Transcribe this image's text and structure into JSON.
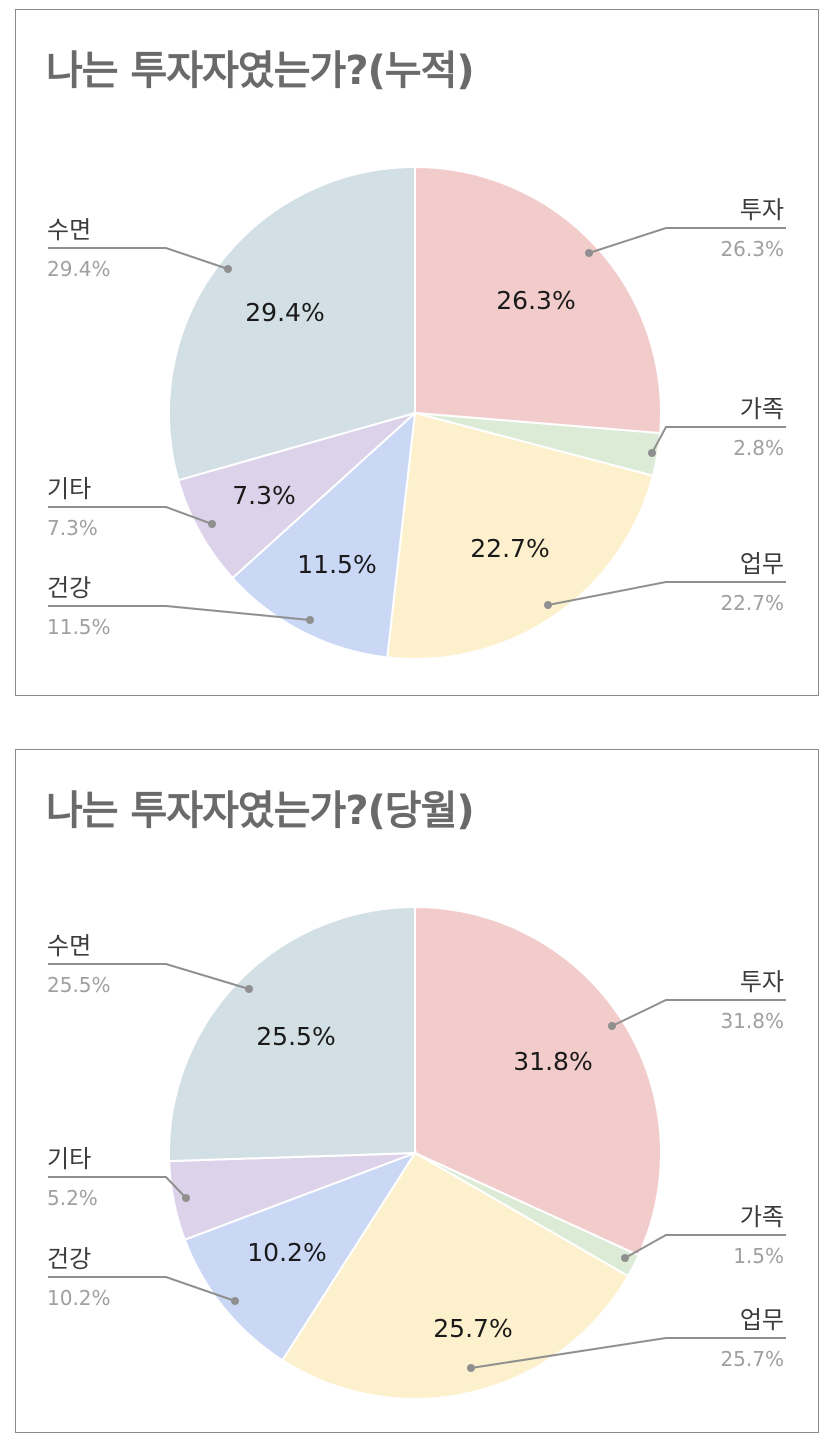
{
  "chart_data": [
    {
      "type": "pie",
      "title": "나는 투자자였는가?(누적)",
      "slices": [
        {
          "label": "투자",
          "value": 26.3,
          "value_label": "26.3%",
          "color": "#f2cbcb"
        },
        {
          "label": "가족",
          "value": 2.8,
          "value_label": "2.8%",
          "color": "#dcebd6"
        },
        {
          "label": "업무",
          "value": 22.7,
          "value_label": "22.7%",
          "color": "#fdf0cc"
        },
        {
          "label": "건강",
          "value": 11.5,
          "value_label": "11.5%",
          "color": "#cad8f5"
        },
        {
          "label": "기타",
          "value": 7.3,
          "value_label": "7.3%",
          "color": "#dcd3ea"
        },
        {
          "label": "수면",
          "value": 29.4,
          "value_label": "29.4%",
          "color": "#d2dfe4"
        }
      ]
    },
    {
      "type": "pie",
      "title": "나는 투자자였는가?(당월)",
      "slices": [
        {
          "label": "투자",
          "value": 31.8,
          "value_label": "31.8%",
          "color": "#f2cbcb"
        },
        {
          "label": "가족",
          "value": 1.5,
          "value_label": "1.5%",
          "color": "#dcebd6"
        },
        {
          "label": "업무",
          "value": 25.7,
          "value_label": "25.7%",
          "color": "#fdf0cc"
        },
        {
          "label": "건강",
          "value": 10.2,
          "value_label": "10.2%",
          "color": "#cad8f5"
        },
        {
          "label": "기타",
          "value": 5.2,
          "value_label": "5.2%",
          "color": "#dcd3ea"
        },
        {
          "label": "수면",
          "value": 25.5,
          "value_label": "25.5%",
          "color": "#d2dfe4"
        }
      ]
    }
  ]
}
